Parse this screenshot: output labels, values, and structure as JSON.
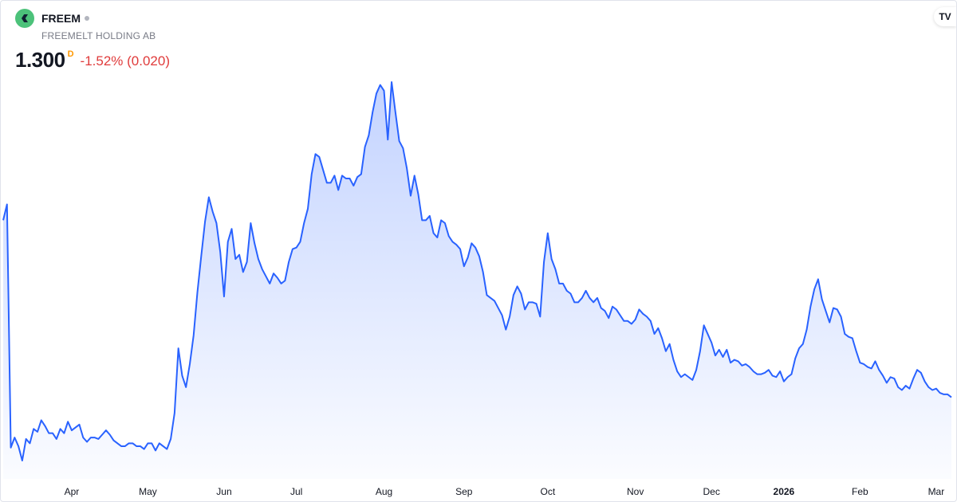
{
  "header": {
    "symbol": "FREEM",
    "company": "FREEMELT HOLDING AB",
    "last_price": "1.300",
    "interval_flag": "D",
    "change": "-1.52% (0.020)"
  },
  "chart_data": {
    "type": "area",
    "color": "#2962ff",
    "values": [
      2.53,
      2.64,
      0.95,
      1.02,
      0.96,
      0.86,
      1.01,
      0.98,
      1.08,
      1.06,
      1.14,
      1.1,
      1.05,
      1.05,
      1.01,
      1.08,
      1.05,
      1.13,
      1.07,
      1.09,
      1.11,
      1.02,
      0.99,
      1.02,
      1.02,
      1.01,
      1.04,
      1.07,
      1.04,
      1.0,
      0.98,
      0.96,
      0.96,
      0.98,
      0.98,
      0.96,
      0.96,
      0.94,
      0.98,
      0.98,
      0.93,
      0.98,
      0.96,
      0.94,
      1.01,
      1.19,
      1.64,
      1.45,
      1.37,
      1.53,
      1.73,
      2.03,
      2.28,
      2.52,
      2.69,
      2.59,
      2.51,
      2.31,
      2.0,
      2.38,
      2.47,
      2.26,
      2.29,
      2.17,
      2.24,
      2.51,
      2.37,
      2.26,
      2.19,
      2.14,
      2.09,
      2.16,
      2.13,
      2.09,
      2.11,
      2.24,
      2.33,
      2.34,
      2.38,
      2.51,
      2.61,
      2.85,
      2.99,
      2.97,
      2.88,
      2.79,
      2.79,
      2.84,
      2.74,
      2.84,
      2.82,
      2.82,
      2.77,
      2.83,
      2.85,
      3.04,
      3.12,
      3.28,
      3.41,
      3.47,
      3.43,
      3.09,
      3.49,
      3.28,
      3.08,
      3.03,
      2.89,
      2.7,
      2.84,
      2.71,
      2.53,
      2.53,
      2.56,
      2.44,
      2.41,
      2.53,
      2.51,
      2.42,
      2.38,
      2.36,
      2.33,
      2.21,
      2.27,
      2.37,
      2.34,
      2.28,
      2.17,
      2.01,
      1.99,
      1.97,
      1.92,
      1.87,
      1.77,
      1.86,
      2.01,
      2.07,
      2.02,
      1.91,
      1.96,
      1.96,
      1.95,
      1.86,
      2.24,
      2.44,
      2.26,
      2.19,
      2.09,
      2.09,
      2.04,
      2.02,
      1.96,
      1.96,
      1.99,
      2.04,
      1.99,
      1.96,
      1.99,
      1.92,
      1.9,
      1.85,
      1.93,
      1.91,
      1.87,
      1.83,
      1.83,
      1.81,
      1.84,
      1.91,
      1.88,
      1.86,
      1.83,
      1.74,
      1.78,
      1.71,
      1.62,
      1.67,
      1.56,
      1.48,
      1.44,
      1.46,
      1.44,
      1.42,
      1.49,
      1.62,
      1.8,
      1.74,
      1.68,
      1.59,
      1.63,
      1.58,
      1.63,
      1.54,
      1.56,
      1.55,
      1.52,
      1.53,
      1.51,
      1.48,
      1.46,
      1.46,
      1.47,
      1.49,
      1.45,
      1.44,
      1.48,
      1.41,
      1.44,
      1.46,
      1.57,
      1.64,
      1.67,
      1.77,
      1.93,
      2.05,
      2.12,
      1.98,
      1.9,
      1.82,
      1.92,
      1.91,
      1.86,
      1.74,
      1.72,
      1.71,
      1.62,
      1.54,
      1.53,
      1.51,
      1.5,
      1.55,
      1.49,
      1.45,
      1.4,
      1.44,
      1.43,
      1.37,
      1.35,
      1.38,
      1.36,
      1.43,
      1.49,
      1.47,
      1.41,
      1.37,
      1.35,
      1.36,
      1.33,
      1.32,
      1.32,
      1.3
    ],
    "xticks": [
      {
        "value": 18,
        "label": "Apr"
      },
      {
        "value": 38,
        "label": "May"
      },
      {
        "value": 58,
        "label": "Jun"
      },
      {
        "value": 77,
        "label": "Jul"
      },
      {
        "value": 100,
        "label": "Aug"
      },
      {
        "value": 121,
        "label": "Sep"
      },
      {
        "value": 143,
        "label": "Oct"
      },
      {
        "value": 166,
        "label": "Nov"
      },
      {
        "value": 186,
        "label": "Dec"
      },
      {
        "value": 205,
        "label": "2026"
      },
      {
        "value": 225,
        "label": "Feb"
      },
      {
        "value": 245,
        "label": "Mar"
      }
    ]
  }
}
